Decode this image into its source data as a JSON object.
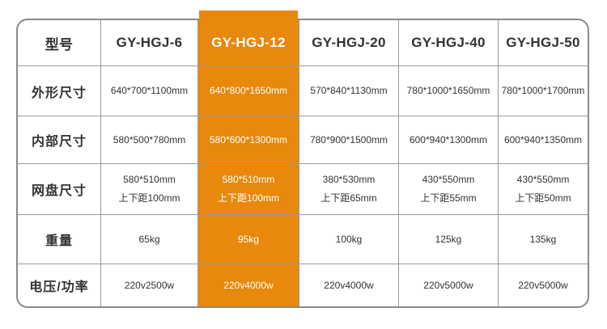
{
  "colors": {
    "accent": "#E8880D",
    "border_outer": "#8A8A8A",
    "border_inner": "#9B9B9B",
    "heading_text": "#333333",
    "data_text": "#333333",
    "highlight_text": "#FFFFFF",
    "background": "#FFFFFF"
  },
  "chart_data": {
    "type": "table",
    "title": "",
    "corner_label": "型号",
    "columns": [
      "型号",
      "GY-HGJ-6",
      "GY-HGJ-12",
      "GY-HGJ-20",
      "GY-HGJ-40",
      "GY-HGJ-50"
    ],
    "highlighted_column": "GY-HGJ-12",
    "rows": [
      {
        "label": "外形尺寸",
        "values": [
          "640*700*1100mm",
          "640*800*1650mm",
          "570*840*1130mm",
          "780*1000*1650mm",
          "780*1000*1700mm"
        ]
      },
      {
        "label": "内部尺寸",
        "values": [
          "580*500*780mm",
          "580*600*1300mm",
          "780*900*1500mm",
          "600*940*1300mm",
          "600*940*1350mm"
        ]
      },
      {
        "label": "网盘尺寸",
        "values": [
          "580*510mm\n上下距100mm",
          "580*510mm\n上下距100mm",
          "380*530mm\n上下距65mm",
          "430*550mm\n上下距55mm",
          "430*550mm\n上下距50mm"
        ]
      },
      {
        "label": "重量",
        "values": [
          "65kg",
          "95kg",
          "100kg",
          "125kg",
          "135kg"
        ]
      },
      {
        "label": "电压/功率",
        "values": [
          "220v2500w",
          "220v4000w",
          "220v4000w",
          "220v5000w",
          "220v5000w"
        ]
      }
    ]
  }
}
